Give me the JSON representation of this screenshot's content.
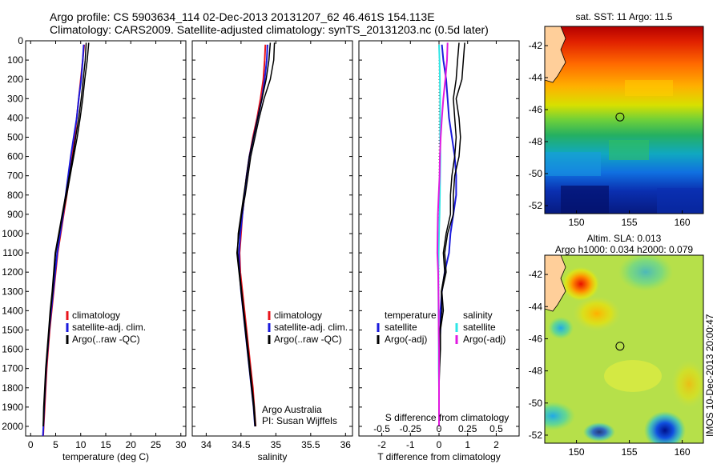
{
  "title_line1": "Argo profile: CS 5903634_114 02-Dec-2013 20131207_62 46.461S 154.113E",
  "title_line2": "Climatology: CARS2009. Satellite-adjusted climatology: synTS_20131203.nc (0.5d later)",
  "credit_1": "Argo Australia",
  "credit_2": "PI: Susan Wijffels",
  "side_stamp": "IMOS 10-Dec-2013 20:00:47",
  "colors": {
    "climatology": "#e8141b",
    "satellite": "#1a1adc",
    "argo": "#000000",
    "sat_sal": "#2ee6e6",
    "argo_sal": "#e01ae0"
  },
  "chart_data": [
    {
      "type": "line",
      "xlabel": "temperature (deg C)",
      "ylim": [
        2050,
        0
      ],
      "xlim": [
        -1,
        31
      ],
      "xticks": [
        "0",
        "5",
        "10",
        "15",
        "20",
        "25",
        "30"
      ],
      "xtick_values": [
        0,
        5,
        10,
        15,
        20,
        25,
        30
      ],
      "yticks": [
        "0",
        "100",
        "200",
        "300",
        "400",
        "500",
        "600",
        "700",
        "800",
        "900",
        "1000",
        "1100",
        "1200",
        "1300",
        "1400",
        "1500",
        "1600",
        "1700",
        "1800",
        "1900",
        "2000"
      ],
      "ytick_values": [
        0,
        100,
        200,
        300,
        400,
        500,
        600,
        700,
        800,
        900,
        1000,
        1100,
        1200,
        1300,
        1400,
        1500,
        1600,
        1700,
        1800,
        1900,
        2000
      ],
      "legend": [
        {
          "label": "climatology",
          "color": "#e8141b"
        },
        {
          "label": "satellite-adj. clim.",
          "color": "#1a1adc"
        },
        {
          "label": "Argo(..raw -QC)",
          "color": "#000000"
        }
      ],
      "series": [
        {
          "name": "climatology",
          "color": "#e8141b",
          "width": 2,
          "x": [
            10.7,
            10.4,
            10.0,
            9.6,
            9.2,
            8.8,
            8.3,
            7.8,
            7.2,
            6.6,
            6.0,
            5.4,
            5.0,
            4.6,
            4.2,
            3.8,
            3.5,
            3.2,
            3.0,
            2.8,
            2.6,
            2.5
          ],
          "y": [
            20,
            100,
            200,
            300,
            400,
            500,
            600,
            700,
            800,
            900,
            1000,
            1100,
            1200,
            1300,
            1400,
            1500,
            1600,
            1700,
            1800,
            1900,
            2000,
            2050
          ]
        },
        {
          "name": "satellite-adj. clim.",
          "color": "#1a1adc",
          "width": 2,
          "x": [
            10.6,
            10.4,
            10.1,
            9.6,
            9.2,
            8.6,
            8.0,
            7.5,
            7.0,
            6.5,
            5.9,
            5.3,
            4.9,
            4.5,
            4.1,
            3.7,
            3.4,
            3.1,
            2.9,
            2.7,
            2.55,
            2.45
          ],
          "y": [
            20,
            100,
            200,
            300,
            400,
            500,
            600,
            700,
            800,
            900,
            1000,
            1100,
            1200,
            1300,
            1400,
            1500,
            1600,
            1700,
            1800,
            1900,
            2000,
            2050
          ]
        },
        {
          "name": "Argo",
          "color": "#000000",
          "width": 1.5,
          "x": [
            11.6,
            11.3,
            10.8,
            10.4,
            9.9,
            9.3,
            8.6,
            7.9,
            7.2,
            6.4,
            5.7,
            5.0,
            4.7,
            4.4,
            4.0,
            3.7,
            3.4,
            3.1,
            2.9,
            2.7,
            2.55
          ],
          "y": [
            10,
            100,
            200,
            300,
            400,
            500,
            600,
            700,
            800,
            900,
            1000,
            1100,
            1200,
            1300,
            1400,
            1500,
            1600,
            1700,
            1800,
            1900,
            2000
          ]
        },
        {
          "name": "Argo",
          "color": "#000000",
          "width": 1.5,
          "x": [
            11.1,
            10.9,
            10.5,
            10.1,
            9.6,
            9.0,
            8.4,
            7.7,
            7.0,
            6.3,
            5.6,
            4.9,
            4.6,
            4.3,
            3.9,
            3.6,
            3.3,
            3.0,
            2.8,
            2.6,
            2.5
          ],
          "y": [
            10,
            100,
            200,
            300,
            400,
            500,
            600,
            700,
            800,
            900,
            1000,
            1100,
            1200,
            1300,
            1400,
            1500,
            1600,
            1700,
            1800,
            1900,
            2000
          ]
        }
      ]
    },
    {
      "type": "line",
      "xlabel": "salinity",
      "ylim": [
        2050,
        0
      ],
      "xlim": [
        33.8,
        36.1
      ],
      "xticks": [
        "34",
        "34.5",
        "35",
        "35.5",
        "36"
      ],
      "xtick_values": [
        34,
        34.5,
        35,
        35.5,
        36
      ],
      "legend": [
        {
          "label": "climatology",
          "color": "#e8141b"
        },
        {
          "label": "satellite-adj. clim.",
          "color": "#1a1adc"
        },
        {
          "label": "Argo(..raw -QC)",
          "color": "#000000"
        }
      ],
      "series": [
        {
          "name": "climatology",
          "color": "#e8141b",
          "width": 2,
          "x": [
            34.85,
            34.84,
            34.82,
            34.78,
            34.73,
            34.67,
            34.62,
            34.58,
            34.55,
            34.52,
            34.5,
            34.48,
            34.49,
            34.52,
            34.55,
            34.58,
            34.61,
            34.64,
            34.67,
            34.69,
            34.71
          ],
          "y": [
            20,
            100,
            200,
            300,
            400,
            500,
            600,
            700,
            800,
            900,
            1000,
            1100,
            1200,
            1300,
            1400,
            1500,
            1600,
            1700,
            1800,
            1900,
            2000
          ]
        },
        {
          "name": "satellite-adj. clim.",
          "color": "#1a1adc",
          "width": 2,
          "x": [
            34.88,
            34.87,
            34.84,
            34.8,
            34.74,
            34.68,
            34.62,
            34.58,
            34.55,
            34.52,
            34.49,
            34.47,
            34.48,
            34.5,
            34.53,
            34.56,
            34.59,
            34.62,
            34.65,
            34.68,
            34.7
          ],
          "y": [
            20,
            100,
            200,
            300,
            400,
            500,
            600,
            700,
            800,
            900,
            1000,
            1100,
            1200,
            1300,
            1400,
            1500,
            1600,
            1700,
            1800,
            1900,
            2000
          ]
        },
        {
          "name": "Argo",
          "color": "#000000",
          "width": 1.5,
          "x": [
            34.98,
            34.97,
            34.92,
            34.83,
            34.76,
            34.7,
            34.64,
            34.6,
            34.56,
            34.51,
            34.47,
            34.44,
            34.47,
            34.5,
            34.53,
            34.56,
            34.59,
            34.62,
            34.65,
            34.68,
            34.7
          ],
          "y": [
            10,
            100,
            200,
            300,
            400,
            500,
            600,
            700,
            800,
            900,
            1000,
            1100,
            1200,
            1300,
            1400,
            1500,
            1600,
            1700,
            1800,
            1900,
            2000
          ]
        },
        {
          "name": "Argo",
          "color": "#000000",
          "width": 1.5,
          "x": [
            34.92,
            34.9,
            34.86,
            34.8,
            34.74,
            34.68,
            34.62,
            34.58,
            34.54,
            34.5,
            34.46,
            34.45,
            34.48,
            34.51,
            34.54,
            34.57,
            34.6,
            34.63,
            34.66,
            34.69,
            34.71
          ],
          "y": [
            10,
            100,
            200,
            300,
            400,
            500,
            600,
            700,
            800,
            900,
            1000,
            1100,
            1200,
            1300,
            1400,
            1500,
            1600,
            1700,
            1800,
            1900,
            2000
          ]
        }
      ]
    },
    {
      "type": "line",
      "xlabel": "T difference from climatology",
      "xlabel_top": "S difference from climatology",
      "ylim": [
        2050,
        0
      ],
      "xlim": [
        -2.8,
        2.8
      ],
      "xticks": [
        "-2",
        "-1",
        "0",
        "1",
        "2"
      ],
      "xtick_values": [
        -2,
        -1,
        0,
        1,
        2
      ],
      "xticks_top": [
        "-0.5",
        "-0.25",
        "0",
        "0.25",
        "0.5"
      ],
      "xticks_top_values": [
        -0.5,
        -0.25,
        0,
        0.25,
        0.5
      ],
      "legend": [
        {
          "label": "temperature",
          "color": "#000000",
          "title": true
        },
        {
          "label": "satellite",
          "color": "#1a1adc"
        },
        {
          "label": "Argo(-adj)",
          "color": "#000000"
        },
        {
          "label": "salinity",
          "color": "#000000",
          "title": true
        },
        {
          "label": "satellite",
          "color": "#2ee6e6"
        },
        {
          "label": "Argo(-adj)",
          "color": "#e01ae0"
        }
      ],
      "series": [
        {
          "name": "satellite T",
          "color": "#1a1adc",
          "width": 2,
          "x": [
            0.1,
            0.15,
            0.25,
            0.3,
            0.35,
            0.45,
            0.55,
            0.6,
            0.6,
            0.5,
            0.4,
            0.35,
            0.2,
            0.1,
            0.05,
            0.05,
            0.02,
            0.0,
            0.0,
            0.0
          ],
          "y": [
            20,
            100,
            200,
            300,
            400,
            500,
            600,
            700,
            800,
            900,
            1000,
            1100,
            1200,
            1300,
            1400,
            1500,
            1600,
            1700,
            1800,
            2000
          ]
        },
        {
          "name": "Argo T",
          "color": "#000000",
          "width": 1.5,
          "x": [
            0.9,
            0.85,
            0.8,
            0.6,
            0.7,
            0.75,
            0.7,
            0.55,
            0.5,
            0.5,
            0.3,
            0.2,
            0.25,
            0.1,
            0.15,
            0.05,
            0.05,
            0.02,
            0.0,
            0.0
          ],
          "y": [
            10,
            100,
            200,
            300,
            400,
            500,
            600,
            700,
            800,
            900,
            1000,
            1100,
            1200,
            1300,
            1400,
            1500,
            1600,
            1700,
            1800,
            2000
          ]
        },
        {
          "name": "Argo T",
          "color": "#000000",
          "width": 1.5,
          "x": [
            0.7,
            0.65,
            0.6,
            0.5,
            0.55,
            0.6,
            0.55,
            0.45,
            0.4,
            0.4,
            0.25,
            0.15,
            0.2,
            0.08,
            0.1,
            0.03,
            0.03,
            0.01,
            0.0,
            0.0
          ],
          "y": [
            10,
            100,
            200,
            300,
            400,
            500,
            600,
            700,
            800,
            900,
            1000,
            1100,
            1200,
            1300,
            1400,
            1500,
            1600,
            1700,
            1800,
            2000
          ]
        },
        {
          "name": "satellite S",
          "color": "#2ee6e6",
          "width": 2,
          "x": [
            0.0,
            0.02,
            0.03,
            0.04,
            0.04,
            0.04,
            0.05,
            0.04,
            0.03,
            0.02,
            0.0,
            -0.01,
            -0.02,
            -0.02,
            -0.02,
            -0.01,
            -0.01,
            -0.01,
            0.0,
            0.0
          ],
          "y": [
            20,
            100,
            200,
            300,
            400,
            500,
            600,
            700,
            800,
            900,
            1000,
            1100,
            1200,
            1300,
            1400,
            1500,
            1600,
            1700,
            1800,
            2000
          ]
        },
        {
          "name": "Argo S",
          "color": "#e01ae0",
          "width": 2,
          "x": [
            0.3,
            0.28,
            0.22,
            0.15,
            0.1,
            0.06,
            0.03,
            0.02,
            -0.01,
            -0.04,
            -0.05,
            -0.06,
            -0.03,
            -0.02,
            -0.01,
            -0.01,
            0.0,
            0.0,
            0.0,
            0.0
          ],
          "y": [
            10,
            100,
            200,
            300,
            400,
            500,
            600,
            700,
            800,
            900,
            1000,
            1100,
            1200,
            1300,
            1400,
            1500,
            1600,
            1700,
            1800,
            2000
          ]
        }
      ]
    },
    {
      "type": "heatmap",
      "title": "sat. SST: 11 Argo: 11.5",
      "xlim": [
        147,
        162
      ],
      "ylim": [
        -52.5,
        -40.8
      ],
      "xticks": [
        "150",
        "155",
        "160"
      ],
      "xtick_values": [
        150,
        155,
        160
      ],
      "yticks": [
        "-42",
        "-44",
        "-46",
        "-48",
        "-50",
        "-52"
      ],
      "ytick_values": [
        -42,
        -44,
        -46,
        -48,
        -50,
        -52
      ],
      "marker": {
        "lon": 154.113,
        "lat": -46.461
      }
    },
    {
      "type": "heatmap",
      "title": "Altim. SLA: 0.013",
      "subtitle": "Argo h1000: 0.034 h2000: 0.079",
      "xlim": [
        147,
        162
      ],
      "ylim": [
        -52.5,
        -40.8
      ],
      "xticks": [
        "150",
        "155",
        "160"
      ],
      "xtick_values": [
        150,
        155,
        160
      ],
      "yticks": [
        "-42",
        "-44",
        "-46",
        "-48",
        "-50",
        "-52"
      ],
      "ytick_values": [
        -42,
        -44,
        -46,
        -48,
        -50,
        -52
      ],
      "marker": {
        "lon": 154.113,
        "lat": -46.461
      }
    }
  ]
}
